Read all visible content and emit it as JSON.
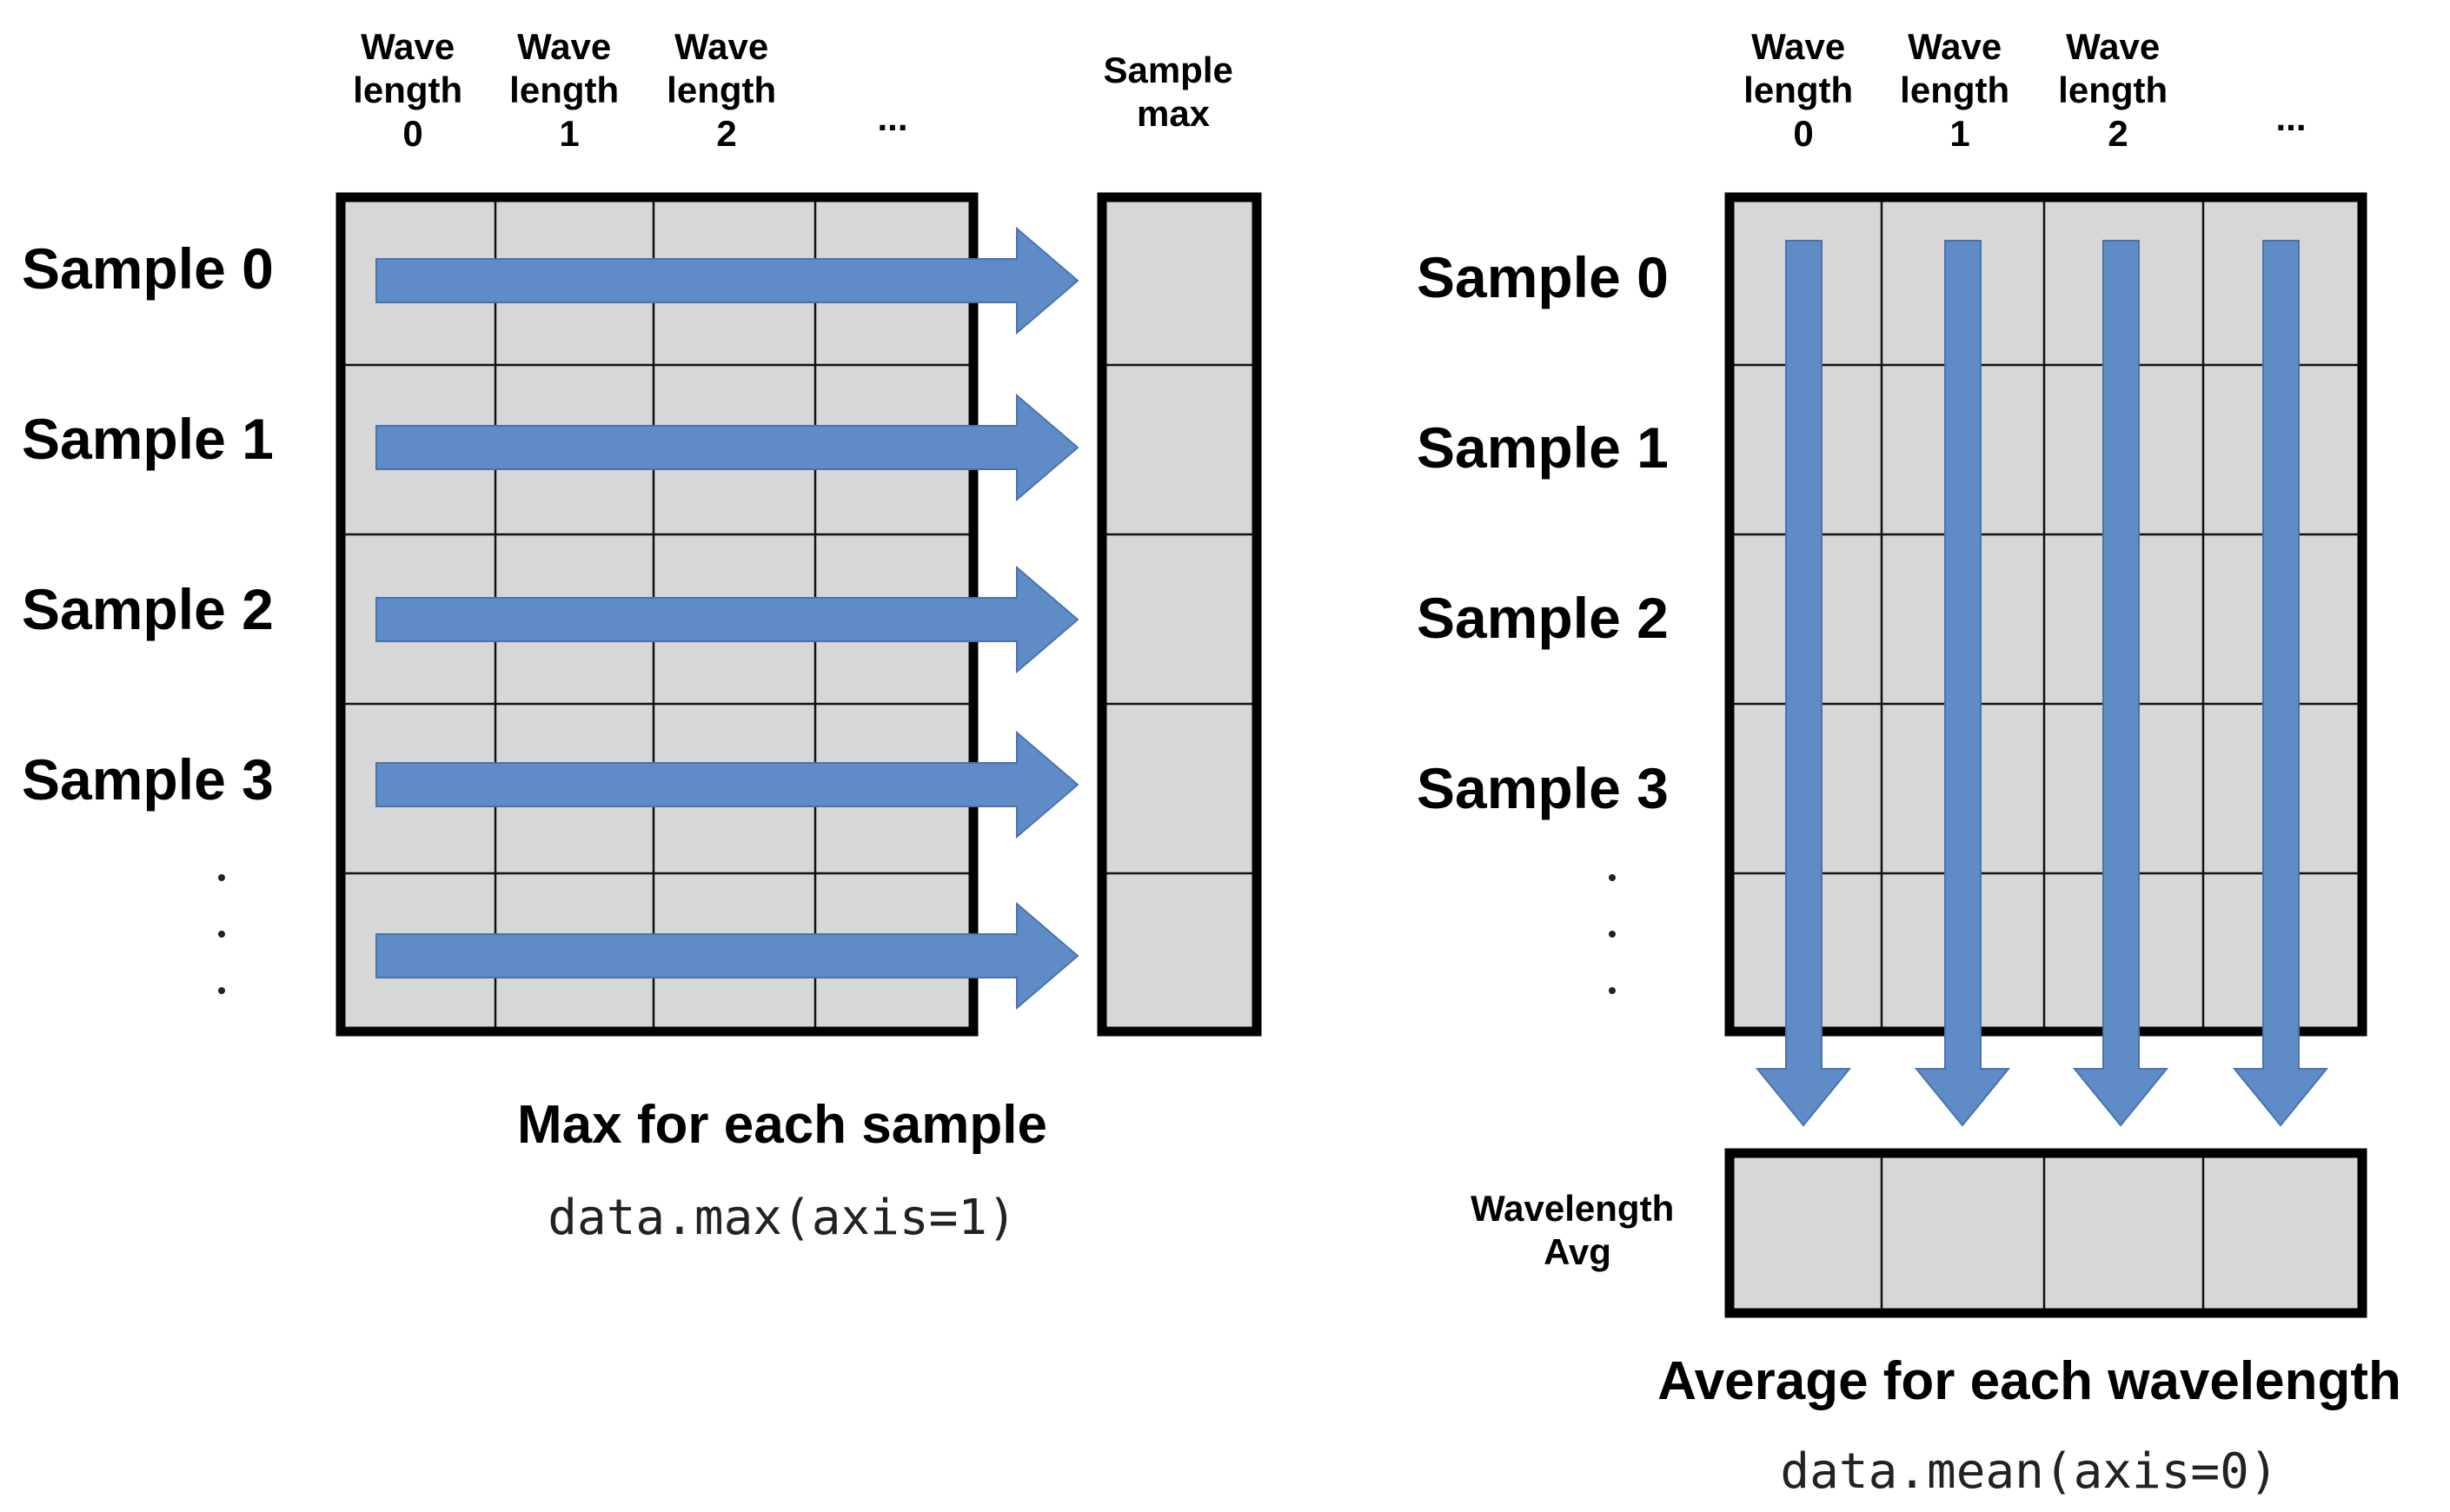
{
  "left": {
    "column_headers": [
      {
        "line1": "Wave",
        "line2": "length",
        "line3": "0"
      },
      {
        "line1": "Wave",
        "line2": "length",
        "line3": "1"
      },
      {
        "line1": "Wave",
        "line2": "length",
        "line3": "2"
      }
    ],
    "column_ellipsis": "...",
    "result_header": {
      "line1": "Sample",
      "line2": "max"
    },
    "row_labels": [
      "Sample 0",
      "Sample 1",
      "Sample 2",
      "Sample 3"
    ],
    "caption": "Max for each sample",
    "code": "data.max(axis=1)"
  },
  "right": {
    "column_headers": [
      {
        "line1": "Wave",
        "line2": "length",
        "line3": "0"
      },
      {
        "line1": "Wave",
        "line2": "length",
        "line3": "1"
      },
      {
        "line1": "Wave",
        "line2": "length",
        "line3": "2"
      }
    ],
    "column_ellipsis": "...",
    "row_labels": [
      "Sample 0",
      "Sample 1",
      "Sample 2",
      "Sample 3"
    ],
    "result_label": {
      "line1": "Wavelength",
      "line2": "Avg"
    },
    "caption": "Average for each wavelength",
    "code": "data.mean(axis=0)"
  },
  "colors": {
    "cell_fill": "#d7d7d7",
    "arrow_fill": "#5f8bc6",
    "frame": "#000000"
  }
}
